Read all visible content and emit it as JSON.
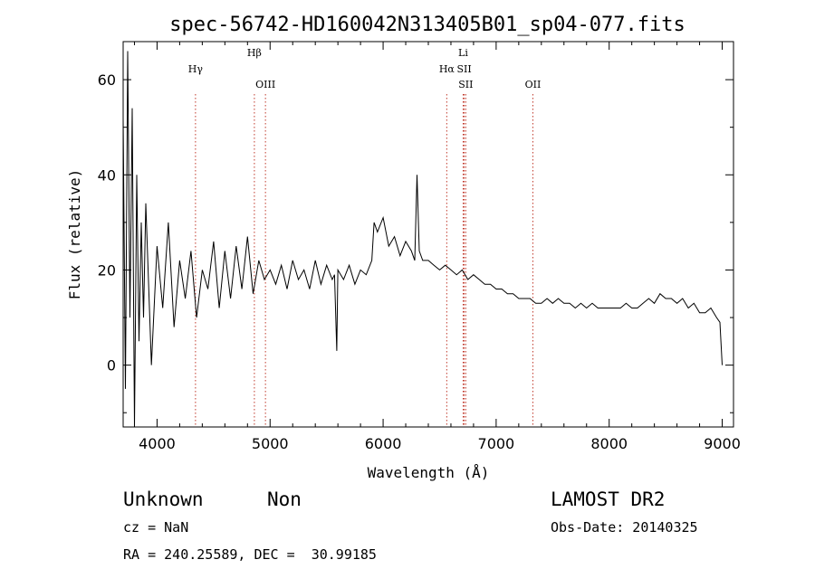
{
  "chart_data": {
    "type": "line",
    "title": "spec-56742-HD160042N313405B01_sp04-077.fits",
    "xlabel": "Wavelength (Å)",
    "ylabel": "Flux (relative)",
    "xlim": [
      3700,
      9100
    ],
    "ylim": [
      -13,
      68
    ],
    "xticks": [
      4000,
      5000,
      6000,
      7000,
      8000,
      9000
    ],
    "yticks": [
      0,
      20,
      40,
      60
    ],
    "grid": false,
    "series": [
      {
        "x": [
          3700,
          3720,
          3740,
          3760,
          3780,
          3800,
          3820,
          3840,
          3860,
          3880,
          3900,
          3950,
          4000,
          4050,
          4100,
          4150,
          4200,
          4250,
          4300,
          4350,
          4400,
          4450,
          4500,
          4550,
          4600,
          4650,
          4700,
          4750,
          4800,
          4850,
          4900,
          4950,
          5000,
          5050,
          5100,
          5150,
          5200,
          5250,
          5300,
          5350,
          5400,
          5450,
          5500,
          5550,
          5570,
          5590,
          5600,
          5650,
          5700,
          5750,
          5800,
          5850,
          5900,
          5920,
          5950,
          6000,
          6050,
          6100,
          6150,
          6200,
          6250,
          6280,
          6300,
          6320,
          6350,
          6400,
          6450,
          6500,
          6550,
          6600,
          6650,
          6700,
          6750,
          6800,
          6850,
          6900,
          6950,
          7000,
          7050,
          7100,
          7150,
          7200,
          7250,
          7300,
          7350,
          7400,
          7450,
          7500,
          7550,
          7600,
          7650,
          7700,
          7750,
          7800,
          7850,
          7900,
          7950,
          8000,
          8050,
          8100,
          8150,
          8200,
          8250,
          8300,
          8350,
          8400,
          8450,
          8500,
          8550,
          8600,
          8650,
          8700,
          8750,
          8800,
          8850,
          8900,
          8950,
          8980,
          9000
        ],
        "y": [
          52,
          -5,
          66,
          10,
          54,
          -13,
          40,
          5,
          30,
          10,
          34,
          0,
          25,
          12,
          30,
          8,
          22,
          14,
          24,
          10,
          20,
          16,
          26,
          12,
          24,
          14,
          25,
          16,
          27,
          15,
          22,
          18,
          20,
          17,
          21,
          16,
          22,
          18,
          20,
          16,
          22,
          17,
          21,
          18,
          19,
          3,
          20,
          18,
          21,
          17,
          20,
          19,
          22,
          30,
          28,
          31,
          25,
          27,
          23,
          26,
          24,
          22,
          40,
          24,
          22,
          22,
          21,
          20,
          21,
          20,
          19,
          20,
          18,
          19,
          18,
          17,
          17,
          16,
          16,
          15,
          15,
          14,
          14,
          14,
          13,
          13,
          14,
          13,
          14,
          13,
          13,
          12,
          13,
          12,
          13,
          12,
          12,
          12,
          12,
          12,
          13,
          12,
          12,
          13,
          14,
          13,
          15,
          14,
          14,
          13,
          14,
          12,
          13,
          11,
          11,
          12,
          10,
          9,
          0
        ]
      }
    ],
    "lines": [
      {
        "label": "Hγ",
        "x": 4340,
        "row": 2,
        "color": "#c0392b"
      },
      {
        "label": "Hβ",
        "x": 4861,
        "row": 1,
        "color": "#c0392b"
      },
      {
        "label": "OIII",
        "x": 4959,
        "row": 3,
        "color": "#c0392b"
      },
      {
        "label": "Hα",
        "x": 6563,
        "row": 2,
        "color": "#c0392b"
      },
      {
        "label": "Li",
        "x": 6708,
        "row": 1,
        "color": "#c0392b"
      },
      {
        "label": "SII",
        "x": 6717,
        "row": 2,
        "color": "#c0392b"
      },
      {
        "label": "SII",
        "x": 6731,
        "row": 3,
        "color": "#c0392b"
      },
      {
        "label": "OII",
        "x": 7325,
        "row": 3,
        "color": "#c0392b"
      }
    ]
  },
  "info": {
    "class": "Unknown",
    "subclass": "Non",
    "survey": "LAMOST DR2",
    "cz": "cz = NaN",
    "obs_date": "Obs-Date: 20140325",
    "coords": "RA = 240.25589, DEC =  30.99185"
  }
}
